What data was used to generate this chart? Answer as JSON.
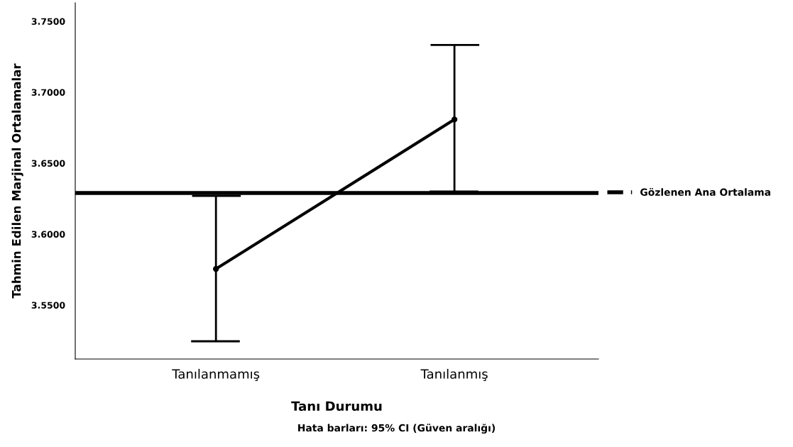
{
  "chart_data": {
    "type": "line",
    "xlabel": "Tanı Durumu",
    "ylabel": "Tahmin Edilen Marjinal Ortalamalar",
    "categories": [
      "Tanılanmamış",
      "Tanılanmış"
    ],
    "series": [
      {
        "color": "#000000",
        "values": [
          3.5755,
          3.6808
        ],
        "errors": [
          [
            3.5245,
            3.627
          ],
          [
            3.63,
            3.7333
          ]
        ]
      }
    ],
    "ylim": [
      3.512,
      3.763
    ],
    "yticks": [
      {
        "value": 3.55,
        "label": "3.5500"
      },
      {
        "value": 3.6,
        "label": "3.6000"
      },
      {
        "value": 3.65,
        "label": "3.6500"
      },
      {
        "value": 3.7,
        "label": "3.7000"
      },
      {
        "value": 3.75,
        "label": "3.7500"
      }
    ],
    "ref_lines": [
      {
        "axis": "y",
        "value": 3.629,
        "label": "Gözlenen Ana Ortalama",
        "color": "#000000",
        "line_style": "solid"
      }
    ],
    "legend": "right",
    "grid": false,
    "marker": "circle",
    "line_style": "solid",
    "annotations": [
      "Hata barları: 95% CI (Güven aralığı)"
    ]
  }
}
